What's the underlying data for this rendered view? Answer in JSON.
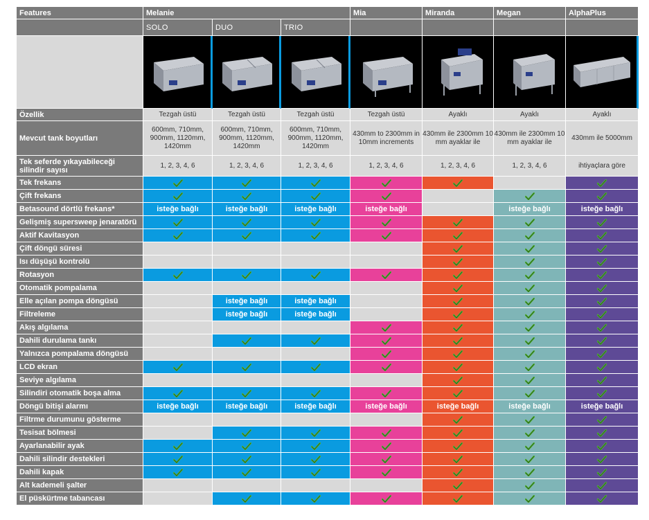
{
  "header": {
    "features": "Features",
    "models": [
      "Melanie",
      "Mia",
      "Miranda",
      "Megan",
      "AlphaPlus"
    ],
    "variants": [
      "SOLO",
      "DUO",
      "TRIO"
    ]
  },
  "images": [
    "solo-machine",
    "duo-machine",
    "trio-machine",
    "mia-machine",
    "miranda-machine",
    "megan-machine",
    "alphaplus-machine"
  ],
  "text_rows": [
    {
      "label": "Özellik",
      "cells": [
        "Tezgah üstü",
        "Tezgah üstü",
        "Tezgah üstü",
        "Tezgah üstü",
        "Ayaklı",
        "Ayaklı",
        "Ayaklı"
      ]
    },
    {
      "label": "Mevcut tank boyutları",
      "cells": [
        "600mm, 710mm, 900mm, 1120mm, 1420mm",
        "600mm, 710mm, 900mm, 1120mm, 1420mm",
        "600mm, 710mm, 900mm, 1120mm, 1420mm",
        "430mm to 2300mm in 10mm increments",
        "430mm ile 2300mm 10 mm ayaklar ile",
        "430mm ile 2300mm 10 mm ayaklar ile",
        "430mm ile 5000mm"
      ]
    },
    {
      "label_line1": "Tek seferde yıkayabileceği",
      "label_line2": "silindir sayısı",
      "cells": [
        "1, 2, 3, 4, 6",
        "1, 2, 3, 4, 6",
        "1, 2, 3, 4, 6",
        "1, 2, 3, 4, 6",
        "1, 2, 3, 4, 6",
        "1, 2, 3, 4, 6",
        "ihtiyaçlara göre"
      ]
    }
  ],
  "optional_label": "isteğe bağlı",
  "colors": {
    "melanie": "#0a9be0",
    "mia": "#e8419a",
    "miranda": "#ea5530",
    "megan": "#7fb5b7",
    "alphaplus": "#5e4a96",
    "empty": "#d9d9d9",
    "label": "#7a7a7a",
    "check": "#55b83a"
  },
  "feature_rows": [
    {
      "label": "Tek frekans",
      "cells": [
        "check",
        "check",
        "check",
        "check",
        "check",
        "empty",
        "check"
      ]
    },
    {
      "label": "Çift frekans",
      "cells": [
        "check",
        "check",
        "check",
        "check",
        "empty",
        "check",
        "check"
      ]
    },
    {
      "label": "Betasound dörtlü frekans*",
      "cells": [
        "opt",
        "opt",
        "opt",
        "opt",
        "empty",
        "opt",
        "opt"
      ]
    },
    {
      "label": "Gelişmiş supersweep jenaratörü",
      "cells": [
        "check",
        "check",
        "check",
        "check",
        "check",
        "check",
        "check"
      ]
    },
    {
      "label": "Aktif Kavitasyon",
      "cells": [
        "check",
        "check",
        "check",
        "check",
        "check",
        "check",
        "check"
      ]
    },
    {
      "label": "Çift döngü süresi",
      "cells": [
        "empty",
        "empty",
        "empty",
        "empty",
        "check",
        "check",
        "check"
      ]
    },
    {
      "label": "Isı düşüşü kontrolü",
      "cells": [
        "empty",
        "empty",
        "empty",
        "empty",
        "check",
        "check",
        "check"
      ]
    },
    {
      "label": "Rotasyon",
      "cells": [
        "check",
        "check",
        "check",
        "check",
        "check",
        "check",
        "check"
      ]
    },
    {
      "label": "Otomatik pompalama",
      "cells": [
        "empty",
        "empty",
        "empty",
        "empty",
        "check",
        "check",
        "check"
      ]
    },
    {
      "label": "Elle açılan pompa döngüsü",
      "cells": [
        "empty",
        "opt",
        "opt",
        "empty",
        "check",
        "check",
        "check"
      ]
    },
    {
      "label": "Filtreleme",
      "cells": [
        "empty",
        "opt",
        "opt",
        "empty",
        "check",
        "check",
        "check"
      ]
    },
    {
      "label": "Akış algılama",
      "cells": [
        "empty",
        "empty",
        "empty",
        "check",
        "check",
        "check",
        "check"
      ]
    },
    {
      "label": "Dahili durulama tankı",
      "cells": [
        "empty",
        "check",
        "check",
        "check",
        "check",
        "check",
        "check"
      ]
    },
    {
      "label": "Yalnızca pompalama döngüsü",
      "cells": [
        "empty",
        "empty",
        "empty",
        "check",
        "check",
        "check",
        "check"
      ]
    },
    {
      "label": "LCD ekran",
      "cells": [
        "check",
        "check",
        "check",
        "check",
        "check",
        "check",
        "check"
      ]
    },
    {
      "label": "Seviye algılama",
      "cells": [
        "empty",
        "empty",
        "empty",
        "empty",
        "check",
        "check",
        "check"
      ]
    },
    {
      "label": "Silindiri otomatik boşa alma",
      "cells": [
        "check",
        "check",
        "check",
        "check",
        "check",
        "check",
        "check"
      ]
    },
    {
      "label": "Döngü bitişi alarmı",
      "cells": [
        "opt",
        "opt",
        "opt",
        "opt",
        "opt",
        "opt",
        "opt"
      ]
    },
    {
      "label": "Filtrme durumunu gösterme",
      "cells": [
        "empty",
        "empty",
        "empty",
        "empty",
        "check",
        "check",
        "check"
      ]
    },
    {
      "label": "Tesisat bölmesi",
      "cells": [
        "empty",
        "check",
        "check",
        "check",
        "check",
        "check",
        "check"
      ]
    },
    {
      "label": "Ayarlanabilir ayak",
      "cells": [
        "check",
        "check",
        "check",
        "check",
        "check",
        "check",
        "check"
      ]
    },
    {
      "label": "Dahili silindir destekleri",
      "cells": [
        "check",
        "check",
        "check",
        "check",
        "check",
        "check",
        "check"
      ]
    },
    {
      "label": "Dahili kapak",
      "cells": [
        "check",
        "check",
        "check",
        "check",
        "check",
        "check",
        "check"
      ]
    },
    {
      "label": "Alt kademeli şalter",
      "cells": [
        "empty",
        "empty",
        "empty",
        "empty",
        "check",
        "check",
        "check"
      ]
    },
    {
      "label": "El püskürtme tabancası",
      "cells": [
        "empty",
        "check",
        "check",
        "check",
        "check",
        "check",
        "check"
      ]
    }
  ]
}
